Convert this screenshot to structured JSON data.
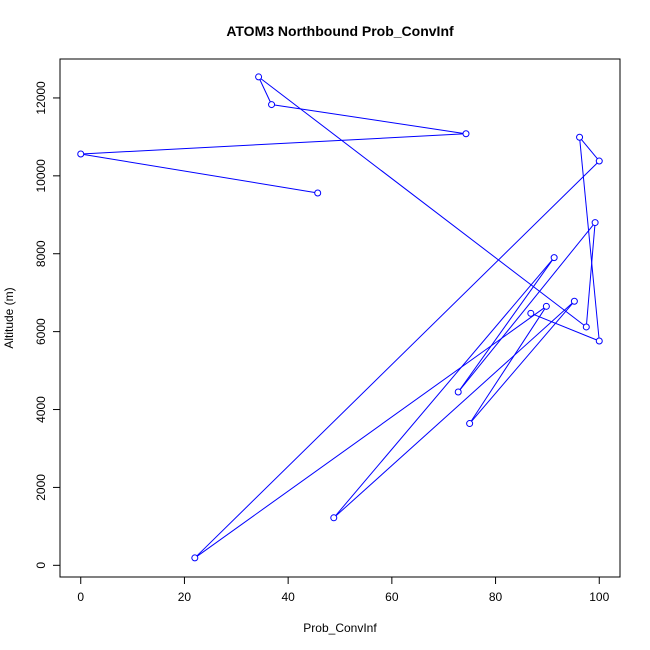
{
  "chart_data": {
    "type": "line",
    "title": "ATOM3 Northbound Prob_ConvInf",
    "xlabel": "Prob_ConvInf",
    "ylabel": "Altitude (m)",
    "xlim": [
      -4,
      104
    ],
    "ylim": [
      -300,
      13000
    ],
    "x_ticks": [
      0,
      20,
      40,
      60,
      80,
      100
    ],
    "y_ticks": [
      0,
      2000,
      4000,
      6000,
      8000,
      10000,
      12000
    ],
    "markers": "open-circle",
    "line_color": "#0000ff",
    "series": [
      {
        "points": [
          {
            "x": 45.7,
            "y": 9560
          },
          {
            "x": 0.0,
            "y": 10560
          },
          {
            "x": 74.3,
            "y": 11080
          },
          {
            "x": 36.8,
            "y": 11830
          },
          {
            "x": 34.3,
            "y": 12540
          },
          {
            "x": 97.5,
            "y": 6120
          },
          {
            "x": 99.2,
            "y": 8800
          },
          {
            "x": 72.8,
            "y": 4450
          },
          {
            "x": 91.3,
            "y": 7900
          },
          {
            "x": 48.8,
            "y": 1220
          },
          {
            "x": 95.2,
            "y": 6780
          },
          {
            "x": 75.0,
            "y": 3640
          },
          {
            "x": 89.8,
            "y": 6650
          },
          {
            "x": 22.0,
            "y": 190
          },
          {
            "x": 100.0,
            "y": 10380
          },
          {
            "x": 96.2,
            "y": 10990
          },
          {
            "x": 100.0,
            "y": 5760
          },
          {
            "x": 86.8,
            "y": 6470
          }
        ]
      }
    ]
  }
}
